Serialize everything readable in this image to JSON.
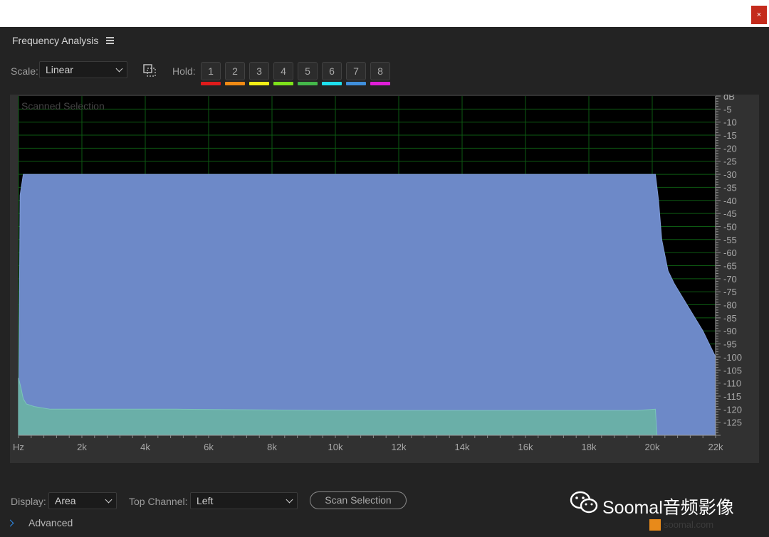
{
  "window": {
    "close_glyph": "×"
  },
  "panel": {
    "title": "Frequency Analysis",
    "menu_icon": "hamburger-menu-icon"
  },
  "toolbar": {
    "scale_label": "Scale:",
    "scale_value": "Linear",
    "hold_label": "Hold:",
    "hold_buttons": [
      {
        "label": "1",
        "color": "#e01b1b"
      },
      {
        "label": "2",
        "color": "#f08a14"
      },
      {
        "label": "3",
        "color": "#f2ee16"
      },
      {
        "label": "4",
        "color": "#7ee21b"
      },
      {
        "label": "5",
        "color": "#44b84a"
      },
      {
        "label": "6",
        "color": "#1ee0ee"
      },
      {
        "label": "7",
        "color": "#3f8fdc"
      },
      {
        "label": "8",
        "color": "#e01ed8"
      }
    ]
  },
  "graph": {
    "overlay_label": "Scanned Selection",
    "background": "#000000",
    "grid_color": "#0d5a12",
    "fill_color": "#6d89c8",
    "floor_color": "#6aafa8"
  },
  "chart_data": {
    "type": "area",
    "xlabel": "",
    "ylabel": "",
    "x_unit_label": "Hz",
    "y_unit_label": "dB",
    "xlim": [
      0,
      22000
    ],
    "ylim": [
      -130,
      0
    ],
    "x_tick_labels": [
      "Hz",
      "2k",
      "4k",
      "6k",
      "8k",
      "10k",
      "12k",
      "14k",
      "16k",
      "18k",
      "20k",
      "22k"
    ],
    "x_ticks": [
      0,
      2000,
      4000,
      6000,
      8000,
      10000,
      12000,
      14000,
      16000,
      18000,
      20000,
      22000
    ],
    "y_tick_labels": [
      "dB",
      "-5",
      "-10",
      "-15",
      "-20",
      "-25",
      "-30",
      "-35",
      "-40",
      "-45",
      "-50",
      "-55",
      "-60",
      "-65",
      "-70",
      "-75",
      "-80",
      "-85",
      "-90",
      "-95",
      "-100",
      "-105",
      "-110",
      "-115",
      "-120",
      "-125"
    ],
    "y_ticks": [
      0,
      -5,
      -10,
      -15,
      -20,
      -25,
      -30,
      -35,
      -40,
      -45,
      -50,
      -55,
      -60,
      -65,
      -70,
      -75,
      -80,
      -85,
      -90,
      -95,
      -100,
      -105,
      -110,
      -115,
      -120,
      -125
    ],
    "series": [
      {
        "type": "spectrum",
        "x": [
          0,
          50,
          150,
          1000,
          5000,
          10000,
          15000,
          19800,
          20100,
          20200,
          20300,
          20500,
          20700,
          21000,
          21300,
          21600,
          21800,
          22000
        ],
        "y": [
          -130,
          -38,
          -30,
          -30,
          -30,
          -30,
          -30,
          -30,
          -30,
          -40,
          -55,
          -67,
          -72,
          -78,
          -84,
          -90,
          -95,
          -100
        ]
      },
      {
        "type": "noise-floor",
        "x": [
          0,
          80,
          150,
          250,
          500,
          1000,
          5000,
          10000,
          15000,
          19500,
          20100,
          20150
        ],
        "y": [
          -108,
          -112,
          -116,
          -118,
          -119,
          -120,
          -120,
          -120.5,
          -120.5,
          -120.5,
          -120,
          -130
        ]
      }
    ],
    "grid": true
  },
  "bottom": {
    "display_label": "Display:",
    "display_value": "Area",
    "top_channel_label": "Top Channel:",
    "top_channel_value": "Left",
    "scan_button": "Scan Selection",
    "advanced_label": "Advanced"
  },
  "watermark": {
    "text": "Soomal音频影像",
    "sub": "soomal.com"
  }
}
